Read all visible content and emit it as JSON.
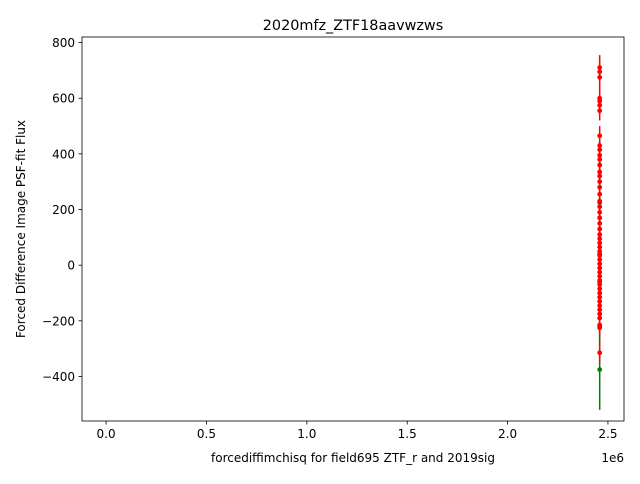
{
  "chart_data": {
    "type": "scatter",
    "title": "2020mfz_ZTF18aavwzws",
    "xlabel": "forcediffimchisq for field695 ZTF_r and 2019sig",
    "ylabel": "Forced Difference Image PSF-fit Flux",
    "x_offset_label": "1e6",
    "xlim": [
      -120000,
      2580000
    ],
    "ylim": [
      -560,
      820
    ],
    "x_ticks": [
      0,
      500000,
      1000000,
      1500000,
      2000000,
      2500000
    ],
    "x_tick_labels": [
      "0.0",
      "0.5",
      "1.0",
      "1.5",
      "2.0",
      "2.5"
    ],
    "y_ticks": [
      -400,
      -200,
      0,
      200,
      400,
      600,
      800
    ],
    "y_tick_labels": [
      "−400",
      "−200",
      "0",
      "200",
      "400",
      "600",
      "800"
    ],
    "grid": false,
    "series": [
      {
        "color": "#008000",
        "points": [
          {
            "x": 2458870,
            "y": -375,
            "err": 145
          },
          {
            "x": 2458870,
            "y": -220,
            "err": 70
          },
          {
            "x": 2458870,
            "y": 225,
            "err": 60
          },
          {
            "x": 2458870,
            "y": 40,
            "err": 60
          },
          {
            "x": 2458870,
            "y": -60,
            "err": 60
          }
        ]
      },
      {
        "color": "#ff0000",
        "points": [
          {
            "x": 2458870,
            "y": 710,
            "err": 45
          },
          {
            "x": 2458870,
            "y": 695,
            "err": 40
          },
          {
            "x": 2458870,
            "y": 675,
            "err": 40
          },
          {
            "x": 2458870,
            "y": 600,
            "err": 40
          },
          {
            "x": 2458870,
            "y": 590,
            "err": 35
          },
          {
            "x": 2458870,
            "y": 575,
            "err": 35
          },
          {
            "x": 2458870,
            "y": 555,
            "err": 35
          },
          {
            "x": 2458870,
            "y": 465,
            "err": 35
          },
          {
            "x": 2458870,
            "y": 430,
            "err": 30
          },
          {
            "x": 2458870,
            "y": 415,
            "err": 30
          },
          {
            "x": 2458870,
            "y": 395,
            "err": 30
          },
          {
            "x": 2458870,
            "y": 380,
            "err": 30
          },
          {
            "x": 2458870,
            "y": 360,
            "err": 30
          },
          {
            "x": 2458870,
            "y": 335,
            "err": 30
          },
          {
            "x": 2458870,
            "y": 320,
            "err": 30
          },
          {
            "x": 2458870,
            "y": 300,
            "err": 30
          },
          {
            "x": 2458870,
            "y": 280,
            "err": 30
          },
          {
            "x": 2458870,
            "y": 255,
            "err": 30
          },
          {
            "x": 2458870,
            "y": 230,
            "err": 30
          },
          {
            "x": 2458870,
            "y": 210,
            "err": 30
          },
          {
            "x": 2458870,
            "y": 190,
            "err": 30
          },
          {
            "x": 2458870,
            "y": 170,
            "err": 30
          },
          {
            "x": 2458870,
            "y": 150,
            "err": 30
          },
          {
            "x": 2458870,
            "y": 130,
            "err": 30
          },
          {
            "x": 2458870,
            "y": 110,
            "err": 30
          },
          {
            "x": 2458870,
            "y": 95,
            "err": 30
          },
          {
            "x": 2458870,
            "y": 80,
            "err": 30
          },
          {
            "x": 2458870,
            "y": 65,
            "err": 30
          },
          {
            "x": 2458870,
            "y": 50,
            "err": 30
          },
          {
            "x": 2458870,
            "y": 35,
            "err": 30
          },
          {
            "x": 2458870,
            "y": 20,
            "err": 30
          },
          {
            "x": 2458870,
            "y": 5,
            "err": 30
          },
          {
            "x": 2458870,
            "y": -10,
            "err": 30
          },
          {
            "x": 2458870,
            "y": -25,
            "err": 30
          },
          {
            "x": 2458870,
            "y": -40,
            "err": 30
          },
          {
            "x": 2458870,
            "y": -55,
            "err": 30
          },
          {
            "x": 2458870,
            "y": -70,
            "err": 30
          },
          {
            "x": 2458870,
            "y": -85,
            "err": 30
          },
          {
            "x": 2458870,
            "y": -100,
            "err": 30
          },
          {
            "x": 2458870,
            "y": -115,
            "err": 30
          },
          {
            "x": 2458870,
            "y": -130,
            "err": 30
          },
          {
            "x": 2458870,
            "y": -145,
            "err": 30
          },
          {
            "x": 2458870,
            "y": -160,
            "err": 30
          },
          {
            "x": 2458870,
            "y": -175,
            "err": 30
          },
          {
            "x": 2458870,
            "y": -190,
            "err": 30
          },
          {
            "x": 2458870,
            "y": -215,
            "err": 35
          },
          {
            "x": 2458870,
            "y": -225,
            "err": 35
          },
          {
            "x": 2458870,
            "y": -315,
            "err": 40
          }
        ]
      }
    ]
  }
}
